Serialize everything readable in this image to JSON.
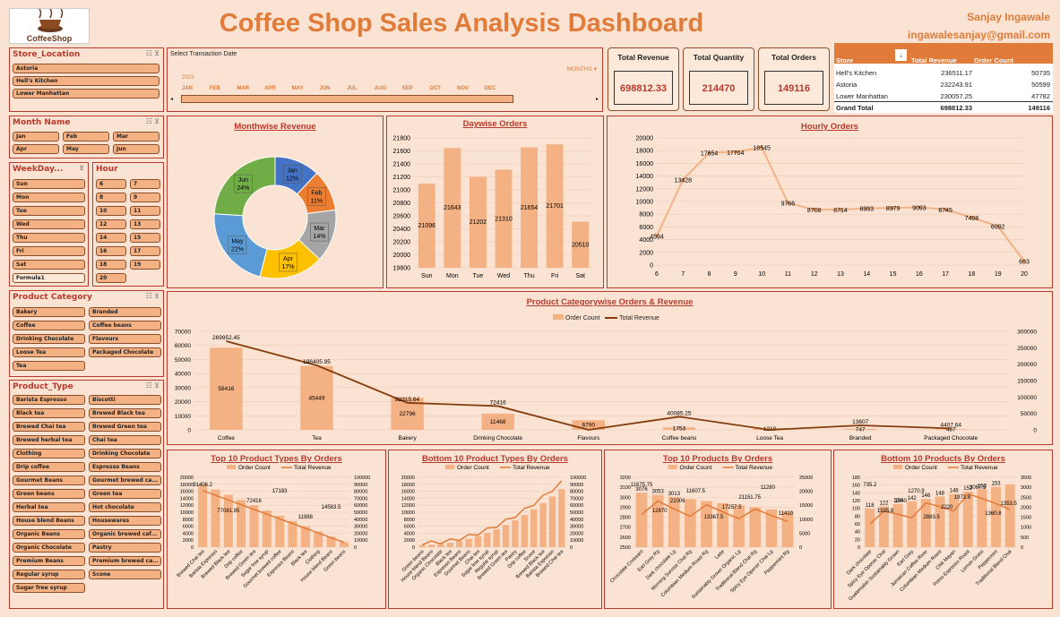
{
  "header": {
    "title": "Coffee Shop Sales Analysis Dashboard",
    "author": "Sanjay Ingawale",
    "email": "ingawalesanjay@gmail.com",
    "logo_text": "CoffeeShop"
  },
  "colors": {
    "accent": "#e07b39",
    "bar": "#f4b183",
    "line": "#843c0c",
    "border": "#b83a2c",
    "bg": "#fbe3d3"
  },
  "slicers": {
    "store": {
      "title": "Store_Location",
      "items": [
        "Astoria",
        "Hell's Kitchen",
        "Lower Manhattan"
      ]
    },
    "month": {
      "title": "Month Name",
      "items": [
        "Jan",
        "Feb",
        "Mar",
        "Apr",
        "May",
        "Jun"
      ]
    },
    "weekday": {
      "title": "WeekDay...",
      "items": [
        "Sun",
        "Mon",
        "Tue",
        "Wed",
        "Thu",
        "Fri",
        "Sat",
        "Formula1"
      ]
    },
    "hour": {
      "title": "Hour",
      "items": [
        "6",
        "7",
        "8",
        "9",
        "10",
        "11",
        "12",
        "13",
        "14",
        "15",
        "16",
        "17",
        "18",
        "19",
        "20"
      ]
    },
    "category": {
      "title": "Product Category",
      "items": [
        "Bakery",
        "Branded",
        "Coffee",
        "Coffee beans",
        "Drinking Chocolate",
        "Flavours",
        "Loose Tea",
        "Packaged Chocolate",
        "Tea"
      ]
    },
    "type": {
      "title": "Product_Type",
      "items": [
        "Barista Espresso",
        "Biscotti",
        "Black tea",
        "Brewed Black tea",
        "Brewed Chai tea",
        "Brewed Green tea",
        "Brewed herbal tea",
        "Chai tea",
        "Clothing",
        "Drinking Chocolate",
        "Drip coffee",
        "Espresso Beans",
        "Gourmet Beans",
        "Gourmet brewed ca...",
        "Green beans",
        "Green tea",
        "Herbal tea",
        "Hot chocolate",
        "House blend Beans",
        "Housewares",
        "Organic Beans",
        "Organic brewed caf...",
        "Organic Chocolate",
        "Pastry",
        "Premium Beans",
        "Premium brewed ca...",
        "Regular syrup",
        "Scone",
        "Sugar free syrup"
      ]
    }
  },
  "timeline": {
    "title": "Select Transaction Date",
    "unit": "MONTHS",
    "year": "2023",
    "months": [
      "JAN",
      "FEB",
      "MAR",
      "APR",
      "MAY",
      "JUN",
      "JUL",
      "AUG",
      "SEP",
      "OCT",
      "NOV",
      "DEC"
    ]
  },
  "kpis": [
    {
      "label": "Total Revenue",
      "value": "698812.33"
    },
    {
      "label": "Total Quantity",
      "value": "214470"
    },
    {
      "label": "Total Orders",
      "value": "149116"
    }
  ],
  "store_table": {
    "headers": [
      "Store",
      "Total Revenue",
      "Order Count"
    ],
    "rows": [
      [
        "Hell's Kitchen",
        "236511.17",
        "50735"
      ],
      [
        "Astoria",
        "232243.91",
        "50599"
      ],
      [
        "Lower Manhattan",
        "230057.25",
        "47782"
      ]
    ],
    "total": [
      "Grand Total",
      "698812.33",
      "149116"
    ]
  },
  "charts": {
    "monthwise": {
      "title": "Monthwise Revenue"
    },
    "daywise": {
      "title": "Daywise Orders"
    },
    "hourly": {
      "title": "Hourly Orders"
    },
    "category": {
      "title": "Product Categorywise Orders & Revenue",
      "legend_bar": "Order Count",
      "legend_line": "Total Revenue"
    },
    "top_types": {
      "title": "Top 10 Product Types By Orders"
    },
    "bottom_types": {
      "title": "Bottom 10 Product Types By Orders"
    },
    "top_products": {
      "title": "Top 10 Products By Orders"
    },
    "bottom_products": {
      "title": "Bottom 10 Products By Orders"
    }
  },
  "chart_data": [
    {
      "type": "pie",
      "title": "Monthwise Revenue",
      "categories": [
        "Jan",
        "Feb",
        "Mar",
        "Apr",
        "May",
        "Jun"
      ],
      "values": [
        12,
        11,
        14,
        17,
        22,
        24
      ],
      "value_labels": [
        "12%",
        "11%",
        "14%",
        "17%",
        "22%",
        "24%"
      ],
      "colors": [
        "#4472c4",
        "#ed7d31",
        "#a5a5a5",
        "#ffc000",
        "#5b9bd5",
        "#70ad47"
      ]
    },
    {
      "type": "bar",
      "title": "Daywise Orders",
      "categories": [
        "Sun",
        "Mon",
        "Tue",
        "Wed",
        "Thu",
        "Fri",
        "Sat"
      ],
      "values": [
        21096,
        21643,
        21202,
        21310,
        21654,
        21701,
        20510
      ],
      "ylim": [
        19800,
        21800
      ],
      "yticks": [
        19800,
        20000,
        20200,
        20400,
        20600,
        20800,
        21000,
        21200,
        21400,
        21600,
        21800
      ]
    },
    {
      "type": "line",
      "title": "Hourly Orders",
      "x": [
        6,
        7,
        8,
        9,
        10,
        11,
        12,
        13,
        14,
        15,
        16,
        17,
        18,
        19,
        20
      ],
      "values": [
        4594,
        13428,
        17654,
        17764,
        18545,
        9766,
        8708,
        8714,
        8933,
        8979,
        9093,
        8745,
        7498,
        6092,
        603
      ],
      "ylim": [
        0,
        20000
      ],
      "yticks": [
        0,
        2000,
        4000,
        6000,
        8000,
        10000,
        12000,
        14000,
        16000,
        18000,
        20000
      ]
    },
    {
      "type": "bar",
      "title": "Product Categorywise Orders & Revenue",
      "categories": [
        "Coffee",
        "Tea",
        "Bakery",
        "Drinking Chocolate",
        "Flavours",
        "Coffee beans",
        "Loose Tea",
        "Branded",
        "Packaged Chocolate"
      ],
      "series": [
        {
          "name": "Order Count",
          "values": [
            58416,
            45449,
            22796,
            11468,
            6790,
            1753,
            1210,
            747,
            487
          ]
        },
        {
          "name": "Total Revenue",
          "values": [
            269952.45,
            196405.95,
            82315.64,
            72416,
            0,
            40085.25,
            0,
            13607,
            4407.64
          ]
        }
      ],
      "value_labels_line": [
        "269952.45",
        "196405.95",
        "82315.64",
        "72416",
        "",
        "40085.25",
        "",
        "13607",
        "4407.64"
      ],
      "ylim": [
        0,
        70000
      ],
      "y2lim": [
        0,
        300000
      ],
      "yticks": [
        0,
        10000,
        20000,
        30000,
        40000,
        50000,
        60000,
        70000
      ],
      "y2ticks": [
        0,
        50000,
        100000,
        150000,
        200000,
        250000,
        300000
      ]
    }
  ],
  "small_charts": {
    "top_types": {
      "legend": [
        "Order Count",
        "Total Revenue"
      ],
      "categories": [
        "Brewed Chai tea",
        "Barista Espresso",
        "Brewed Black tea",
        "Drip coffee",
        "Brewed Green tea",
        "Sugar free syrup",
        "Gourmet brewed coffee",
        "Espresso Beans",
        "Black tea",
        "Clothing",
        "House blend Beans",
        "Green beans"
      ],
      "labels": [
        "91406.2",
        "77081.95",
        "72416",
        "17183",
        "11988",
        "14583.5"
      ],
      "yticks": [
        "0",
        "2000",
        "4000",
        "6000",
        "8000",
        "10000",
        "12000",
        "14000",
        "16000",
        "18000",
        "20000"
      ],
      "y2ticks": [
        "0",
        "10000",
        "20000",
        "30000",
        "40000",
        "50000",
        "60000",
        "70000",
        "80000",
        "90000",
        "100000"
      ]
    },
    "bottom_types": {
      "legend": [
        "Order Count",
        "Total Revenue"
      ],
      "categories": [
        "Green beans",
        "House blend Beans",
        "Organic Chocolate",
        "Black tea",
        "Espresso Beans",
        "Gourmet Beans",
        "Chai tea",
        "Sugar free syrup",
        "Regular syrup",
        "Brewed Green tea",
        "Pastry",
        "Drip coffee",
        "Scone",
        "Brewed Black tea",
        "Barista Espresso",
        "Brewed Chai tea"
      ],
      "yticks": [
        "0",
        "2000",
        "4000",
        "6000",
        "8000",
        "10000",
        "12000",
        "14000",
        "16000",
        "18000",
        "20000"
      ],
      "y2ticks": [
        "0",
        "10000",
        "20000",
        "30000",
        "40000",
        "50000",
        "60000",
        "70000",
        "80000",
        "90000",
        "100000"
      ]
    },
    "top_products": {
      "legend": [
        "Order Count",
        "Total Revenue"
      ],
      "categories": [
        "Chocolate Croissant",
        "Earl Grey Rg",
        "Dark chocolate Lg",
        "Morning Sunrise Chai Rg",
        "Columbian Medium Roast Rg",
        "Latte",
        "Sustainably Grown Organic Lg",
        "Traditional Blend Chai Rg",
        "Spicy Eye Opener Chai Lg",
        "Peppermint Rg"
      ],
      "bars": [
        "3076",
        "3053",
        "3013"
      ],
      "labels": [
        "11675.75",
        "12870",
        "21006",
        "11607.5",
        "13367.5",
        "17257.5",
        "21151.75",
        "11280",
        "11410"
      ],
      "yticks": [
        "2500",
        "2600",
        "2700",
        "2800",
        "2900",
        "3000",
        "3100",
        "3200"
      ],
      "y2ticks": [
        "0",
        "5000",
        "10000",
        "15000",
        "20000",
        "25000"
      ]
    },
    "bottom_products": {
      "legend": [
        "Order Count",
        "Total Revenue"
      ],
      "categories": [
        "Dark chocolate",
        "Spicy Eye Opener Chai",
        "Guatemalan Sustainably Grown",
        "Earl Grey",
        "Jamaican Coffee River",
        "Columbian Medium Roast",
        "Chili Mayan",
        "Primo Espresso Roast",
        "Lemon Grass",
        "Peppermint",
        "Traditional Blend Chai"
      ],
      "bars": [
        "118",
        "122",
        "134",
        "142",
        "146",
        "148",
        "148",
        "152",
        "153",
        "153"
      ],
      "labels": [
        "735.2",
        "1335.8",
        "1340",
        "1270.9",
        "2883.5",
        "2220",
        "1972.8",
        "3067.5",
        "1360.8",
        "1353.5"
      ],
      "yticks": [
        "0",
        "20",
        "40",
        "60",
        "80",
        "100",
        "120",
        "140",
        "160",
        "180"
      ],
      "y2ticks": [
        "0",
        "500",
        "1000",
        "1500",
        "2000",
        "2500",
        "3000",
        "3500"
      ]
    }
  }
}
